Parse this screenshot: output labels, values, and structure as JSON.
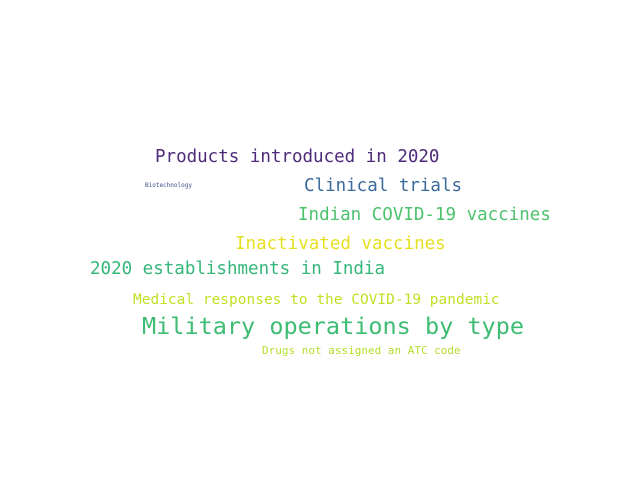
{
  "words": [
    {
      "text": "Products introduced in 2020",
      "color": "#4e2a7a"
    },
    {
      "text": "Biotechnology",
      "color": "#3b528b"
    },
    {
      "text": "Clinical trials",
      "color": "#3b6a9a"
    },
    {
      "text": "Indian COVID-19 vaccines",
      "color": "#4cc26c"
    },
    {
      "text": "Inactivated vaccines",
      "color": "#e6e022"
    },
    {
      "text": "2020 establishments in India",
      "color": "#35b779"
    },
    {
      "text": "Medical responses to the COVID-19 pandemic",
      "color": "#c2df23"
    },
    {
      "text": "Military operations by type",
      "color": "#3ebc74"
    },
    {
      "text": "Drugs not assigned an ATC code",
      "color": "#b5de2b"
    }
  ]
}
